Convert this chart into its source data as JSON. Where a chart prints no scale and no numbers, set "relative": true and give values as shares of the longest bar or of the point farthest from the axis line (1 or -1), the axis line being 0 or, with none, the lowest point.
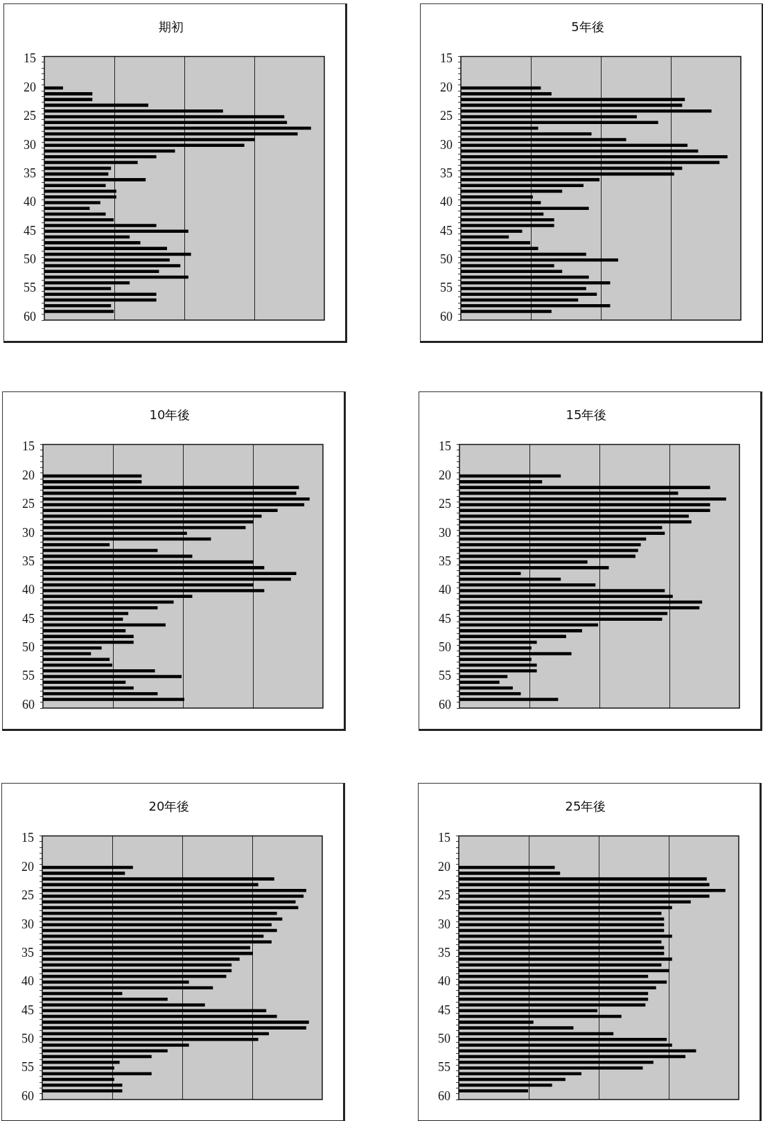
{
  "chart_data": [
    {
      "type": "bar",
      "orientation": "horizontal",
      "relative": true,
      "grid": "x",
      "color": "#000000",
      "title": "期初",
      "categories": [
        "15",
        null,
        null,
        null,
        null,
        "20",
        null,
        null,
        null,
        null,
        "25",
        null,
        null,
        null,
        null,
        "30",
        null,
        null,
        null,
        null,
        "35",
        null,
        null,
        null,
        null,
        "40",
        null,
        null,
        null,
        null,
        "45",
        null,
        null,
        null,
        null,
        "50",
        null,
        null,
        null,
        null,
        "55",
        null,
        null,
        null,
        null,
        "60"
      ],
      "values": [
        null,
        null,
        null,
        null,
        null,
        0.07,
        0.18,
        0.18,
        0.39,
        0.67,
        0.9,
        0.91,
        1,
        0.95,
        0.79,
        0.75,
        0.49,
        0.42,
        0.35,
        0.25,
        0.24,
        0.38,
        0.23,
        0.27,
        0.27,
        0.21,
        0.17,
        0.23,
        0.26,
        0.42,
        0.54,
        0.32,
        0.36,
        0.46,
        0.55,
        0.47,
        0.51,
        0.43,
        0.54,
        0.32,
        0.25,
        0.42,
        0.42,
        0.25,
        0.26,
        null
      ]
    },
    {
      "type": "bar",
      "orientation": "horizontal",
      "relative": true,
      "grid": "x",
      "color": "#000000",
      "title": "5年後",
      "categories": [
        "15",
        null,
        null,
        null,
        null,
        "20",
        null,
        null,
        null,
        null,
        "25",
        null,
        null,
        null,
        null,
        "30",
        null,
        null,
        null,
        null,
        "35",
        null,
        null,
        null,
        null,
        "40",
        null,
        null,
        null,
        null,
        "45",
        null,
        null,
        null,
        null,
        "50",
        null,
        null,
        null,
        null,
        "55",
        null,
        null,
        null,
        null,
        "60"
      ],
      "values": [
        null,
        null,
        null,
        null,
        null,
        0.3,
        0.34,
        0.84,
        0.83,
        0.94,
        0.66,
        0.74,
        0.29,
        0.49,
        0.62,
        0.85,
        0.89,
        1,
        0.97,
        0.83,
        0.8,
        0.52,
        0.46,
        0.38,
        0.27,
        0.3,
        0.48,
        0.31,
        0.35,
        0.35,
        0.23,
        0.18,
        0.26,
        0.29,
        0.47,
        0.59,
        0.35,
        0.38,
        0.48,
        0.56,
        0.47,
        0.51,
        0.44,
        0.56,
        0.34,
        null
      ]
    },
    {
      "type": "bar",
      "orientation": "horizontal",
      "relative": true,
      "grid": "x",
      "color": "#000000",
      "title": "10年後",
      "categories": [
        "15",
        null,
        null,
        null,
        null,
        "20",
        null,
        null,
        null,
        null,
        "25",
        null,
        null,
        null,
        null,
        "30",
        null,
        null,
        null,
        null,
        "35",
        null,
        null,
        null,
        null,
        "40",
        null,
        null,
        null,
        null,
        "45",
        null,
        null,
        null,
        null,
        "50",
        null,
        null,
        null,
        null,
        "55",
        null,
        null,
        null,
        null,
        "60"
      ],
      "values": [
        null,
        null,
        null,
        null,
        null,
        0.37,
        0.37,
        0.96,
        0.95,
        1,
        0.98,
        0.88,
        0.82,
        0.79,
        0.76,
        0.54,
        0.63,
        0.25,
        0.43,
        0.56,
        0.79,
        0.83,
        0.95,
        0.93,
        0.79,
        0.83,
        0.56,
        0.49,
        0.43,
        0.32,
        0.3,
        0.46,
        0.31,
        0.34,
        0.34,
        0.22,
        0.18,
        0.25,
        0.26,
        0.42,
        0.52,
        0.31,
        0.34,
        0.43,
        0.53,
        null
      ]
    },
    {
      "type": "bar",
      "orientation": "horizontal",
      "relative": true,
      "grid": "x",
      "color": "#000000",
      "title": "15年後",
      "categories": [
        "15",
        null,
        null,
        null,
        null,
        "20",
        null,
        null,
        null,
        null,
        "25",
        null,
        null,
        null,
        null,
        "30",
        null,
        null,
        null,
        null,
        "35",
        null,
        null,
        null,
        null,
        "40",
        null,
        null,
        null,
        null,
        "45",
        null,
        null,
        null,
        null,
        "50",
        null,
        null,
        null,
        null,
        "55",
        null,
        null,
        null,
        null,
        "60"
      ],
      "values": [
        null,
        null,
        null,
        null,
        null,
        0.38,
        0.31,
        0.94,
        0.82,
        1,
        0.94,
        0.94,
        0.86,
        0.87,
        0.76,
        0.77,
        0.7,
        0.68,
        0.67,
        0.66,
        0.48,
        0.56,
        0.23,
        0.38,
        0.51,
        0.77,
        0.8,
        0.91,
        0.9,
        0.78,
        0.76,
        0.52,
        0.46,
        0.4,
        0.29,
        0.27,
        0.42,
        0.27,
        0.29,
        0.29,
        0.18,
        0.15,
        0.2,
        0.23,
        0.37,
        null
      ]
    },
    {
      "type": "bar",
      "orientation": "horizontal",
      "relative": true,
      "grid": "x",
      "color": "#000000",
      "title": "20年後",
      "categories": [
        "15",
        null,
        null,
        null,
        null,
        "20",
        null,
        null,
        null,
        null,
        "25",
        null,
        null,
        null,
        null,
        "30",
        null,
        null,
        null,
        null,
        "35",
        null,
        null,
        null,
        null,
        "40",
        null,
        null,
        null,
        null,
        "45",
        null,
        null,
        null,
        null,
        "50",
        null,
        null,
        null,
        null,
        "55",
        null,
        null,
        null,
        null,
        "60"
      ],
      "values": [
        null,
        null,
        null,
        null,
        null,
        0.34,
        0.31,
        0.87,
        0.81,
        0.99,
        0.98,
        0.95,
        0.96,
        0.88,
        0.9,
        0.86,
        0.88,
        0.83,
        0.86,
        0.78,
        0.79,
        0.74,
        0.71,
        0.71,
        0.69,
        0.55,
        0.64,
        0.3,
        0.47,
        0.61,
        0.84,
        0.88,
        1,
        0.99,
        0.85,
        0.81,
        0.55,
        0.47,
        0.41,
        0.29,
        0.27,
        0.41,
        0.27,
        0.3,
        0.3,
        null
      ]
    },
    {
      "type": "bar",
      "orientation": "horizontal",
      "relative": true,
      "grid": "x",
      "color": "#000000",
      "title": "25年後",
      "categories": [
        "15",
        null,
        null,
        null,
        null,
        "20",
        null,
        null,
        null,
        null,
        "25",
        null,
        null,
        null,
        null,
        "30",
        null,
        null,
        null,
        null,
        "35",
        null,
        null,
        null,
        null,
        "40",
        null,
        null,
        null,
        null,
        "45",
        null,
        null,
        null,
        null,
        "50",
        null,
        null,
        null,
        null,
        "55",
        null,
        null,
        null,
        null,
        "60"
      ],
      "values": [
        null,
        null,
        null,
        null,
        null,
        0.36,
        0.38,
        0.93,
        0.94,
        1,
        0.94,
        0.87,
        0.8,
        0.76,
        0.77,
        0.77,
        0.77,
        0.8,
        0.76,
        0.77,
        0.77,
        0.8,
        0.76,
        0.79,
        0.71,
        0.78,
        0.74,
        0.71,
        0.71,
        0.7,
        0.52,
        0.61,
        0.28,
        0.43,
        0.58,
        0.78,
        0.8,
        0.89,
        0.85,
        0.73,
        0.69,
        0.46,
        0.4,
        0.35,
        0.26,
        null
      ]
    }
  ]
}
